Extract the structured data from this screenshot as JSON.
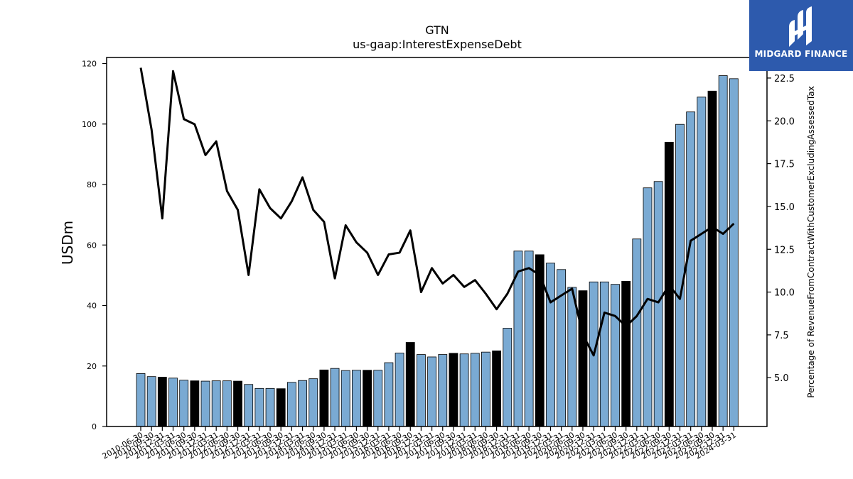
{
  "chart_data": {
    "type": "bar+line",
    "title": "GTN",
    "subtitle": "us-gaap:InterestExpenseDebt",
    "ylabel": "USDm",
    "y2label": "Percentage of RevenueFromContractWithCustomerExcludingAssessedTax",
    "ylim": [
      0,
      122
    ],
    "y2lim": [
      2.15,
      23.7
    ],
    "yticks": [
      "0",
      "20",
      "40",
      "60",
      "80",
      "100",
      "120"
    ],
    "y2ticks": [
      "5.0",
      "7.5",
      "10.0",
      "12.5",
      "15.0",
      "17.5",
      "20.0",
      "22.5"
    ],
    "categories": [
      "2010-06-30",
      "2010-09-30",
      "2010-12-31",
      "2011-03-31",
      "2011-06-30",
      "2011-09-30",
      "2011-12-31",
      "2012-03-31",
      "2012-06-30",
      "2012-09-30",
      "2012-12-31",
      "2013-03-31",
      "2013-06-30",
      "2013-09-30",
      "2013-12-31",
      "2014-03-31",
      "2014-06-30",
      "2014-09-30",
      "2014-12-31",
      "2015-03-31",
      "2015-06-30",
      "2015-09-30",
      "2015-12-31",
      "2016-03-31",
      "2016-06-30",
      "2016-09-30",
      "2016-12-31",
      "2017-03-31",
      "2017-06-30",
      "2017-09-30",
      "2017-12-31",
      "2018-03-31",
      "2018-06-30",
      "2018-09-30",
      "2018-12-31",
      "2019-03-31",
      "2019-06-30",
      "2019-09-30",
      "2019-12-31",
      "2020-03-31",
      "2020-06-30",
      "2020-09-30",
      "2020-12-31",
      "2021-03-31",
      "2021-06-30",
      "2021-09-30",
      "2021-12-31",
      "2022-03-31",
      "2022-06-30",
      "2022-09-30",
      "2022-12-31",
      "2023-03-31",
      "2023-06-30",
      "2023-09-30",
      "2023-12-31",
      "2024-03-31"
    ],
    "bar_values": [
      17.5,
      16.5,
      16.3,
      16.0,
      15.3,
      15.1,
      15.0,
      15.1,
      15.1,
      15.0,
      13.9,
      12.6,
      12.6,
      12.5,
      14.6,
      15.2,
      15.8,
      18.7,
      19.2,
      18.5,
      18.6,
      18.6,
      18.6,
      21.1,
      24.3,
      27.8,
      23.8,
      23.0,
      23.8,
      24.2,
      24.0,
      24.2,
      24.6,
      25.0,
      32.5,
      58.0,
      58.0,
      56.8,
      54.0,
      51.9,
      46.0,
      44.9,
      47.8,
      47.8,
      47.0,
      48.0,
      62.0,
      78.9,
      81.0,
      94.0,
      99.9,
      104.0,
      108.9,
      110.9,
      116.0,
      115.0
    ],
    "bar_highlight": [
      false,
      false,
      true,
      false,
      false,
      true,
      false,
      false,
      false,
      true,
      false,
      false,
      false,
      true,
      false,
      false,
      false,
      true,
      false,
      false,
      false,
      true,
      false,
      false,
      false,
      true,
      false,
      false,
      false,
      true,
      false,
      false,
      false,
      true,
      false,
      false,
      false,
      true,
      false,
      false,
      false,
      true,
      false,
      false,
      false,
      true,
      false,
      false,
      false,
      true,
      false,
      false,
      false,
      true,
      false,
      false
    ],
    "line_values": [
      23.1,
      19.5,
      14.3,
      22.9,
      20.1,
      19.8,
      18.0,
      18.8,
      15.9,
      14.8,
      11.0,
      16.0,
      14.9,
      14.3,
      15.3,
      16.7,
      14.8,
      14.1,
      10.8,
      13.9,
      12.9,
      12.3,
      11.0,
      12.2,
      12.3,
      13.6,
      10.0,
      11.4,
      10.5,
      11.0,
      10.3,
      10.7,
      9.9,
      9.0,
      9.9,
      11.2,
      11.4,
      11.0,
      9.4,
      9.8,
      10.2,
      7.5,
      6.3,
      8.8,
      8.6,
      8.0,
      8.6,
      9.6,
      9.4,
      10.4,
      9.6,
      13.0,
      13.4,
      13.8,
      13.4,
      14.0
    ],
    "colors": {
      "bar": "#7aaad3",
      "bar_highlight": "#000000",
      "line": "#000000",
      "axis": "#000000"
    },
    "grid": false,
    "legend": "none"
  },
  "logo": {
    "text": "MIDGARD FINANCE",
    "color": "#2d5aad"
  }
}
